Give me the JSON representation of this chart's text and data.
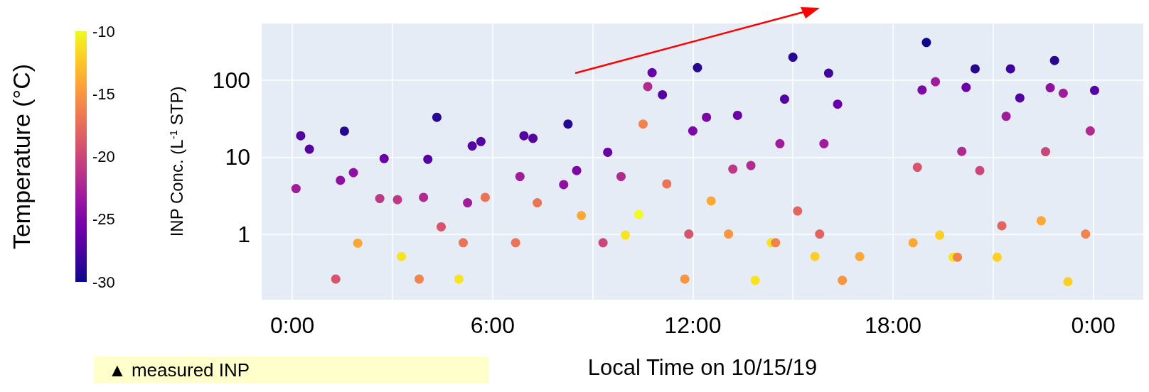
{
  "chart_data": {
    "type": "scatter",
    "xlabel": "Local Time on 10/15/19",
    "ylabel": "INP Conc. (L$^{-1}$ STP)",
    "clabel": "Temperature (°C)",
    "annotations": [
      "▲ measured INP"
    ],
    "log": "y",
    "grid": true,
    "marker": "circle",
    "xlim": [
      -0.92,
      25.5
    ],
    "xticks": [
      {
        "value": 0,
        "label": "0:00"
      },
      {
        "value": 3,
        "label": null
      },
      {
        "value": 6,
        "label": "6:00"
      },
      {
        "value": 9,
        "label": null
      },
      {
        "value": 12,
        "label": "12:00"
      },
      {
        "value": 15,
        "label": null
      },
      {
        "value": 18,
        "label": "18:00"
      },
      {
        "value": 21,
        "label": null
      },
      {
        "value": 24,
        "label": "0:00"
      }
    ],
    "ylim": [
      0.14,
      550
    ],
    "yticks": [
      1,
      10,
      100
    ],
    "clim": [
      -30,
      -10
    ],
    "cticks": [
      -10,
      -15,
      -20,
      -25,
      -30
    ],
    "x": [
      0.11,
      0.25,
      0.51,
      1.3,
      1.44,
      1.56,
      1.83,
      1.96,
      2.62,
      2.75,
      3.15,
      3.27,
      3.8,
      3.93,
      4.06,
      4.33,
      4.46,
      4.99,
      5.12,
      5.25,
      5.39,
      5.65,
      5.78,
      6.69,
      6.82,
      6.94,
      7.21,
      7.34,
      8.13,
      8.26,
      8.52,
      8.66,
      9.31,
      9.45,
      9.85,
      9.98,
      10.38,
      10.51,
      10.65,
      10.78,
      11.09,
      11.22,
      11.76,
      11.88,
      12.0,
      12.14,
      12.41,
      12.55,
      13.07,
      13.2,
      13.34,
      13.74,
      13.87,
      14.35,
      14.48,
      14.61,
      14.75,
      15.0,
      15.14,
      15.66,
      15.8,
      15.93,
      16.07,
      16.34,
      16.48,
      17.0,
      18.6,
      18.73,
      18.87,
      19.0,
      19.27,
      19.4,
      19.8,
      19.93,
      20.06,
      20.19,
      20.46,
      20.6,
      21.12,
      21.26,
      21.39,
      21.52,
      21.8,
      22.44,
      22.57,
      22.71,
      22.84,
      23.1,
      23.24,
      23.77,
      23.91,
      24.04
    ],
    "values": [
      3.9,
      19,
      12.7,
      0.26,
      5.0,
      21.8,
      6.3,
      0.76,
      2.9,
      9.6,
      2.8,
      0.51,
      0.26,
      3.0,
      9.4,
      33,
      1.24,
      0.26,
      0.77,
      2.55,
      14,
      16,
      3.0,
      0.77,
      5.6,
      19,
      17.6,
      2.55,
      4.4,
      27,
      6.7,
      1.74,
      0.77,
      11.6,
      5.6,
      0.97,
      1.8,
      27,
      83,
      126,
      65,
      4.5,
      0.26,
      1.0,
      22,
      146,
      33,
      2.7,
      1.0,
      7.0,
      35,
      7.8,
      0.25,
      0.77,
      0.77,
      15,
      57,
      200,
      2.0,
      0.51,
      1.0,
      15,
      124,
      49,
      0.25,
      0.51,
      0.77,
      7.4,
      75,
      311,
      96,
      0.97,
      0.5,
      0.5,
      11.9,
      81,
      141,
      6.7,
      0.5,
      1.28,
      34,
      141,
      59,
      1.49,
      11.8,
      80,
      181,
      68,
      0.24,
      1.0,
      22,
      74
    ],
    "cvalues": [
      -23,
      -27,
      -27,
      -19,
      -24,
      -29,
      -24,
      -14,
      -21,
      -26,
      -21,
      -11,
      -16,
      -22,
      -27,
      -29,
      -19,
      -11,
      -17,
      -23,
      -27,
      -27,
      -17,
      -17,
      -23,
      -27,
      -27,
      -17,
      -24,
      -29,
      -25,
      -14,
      -20,
      -26,
      -22,
      -11,
      -10,
      -16,
      -22,
      -26,
      -27,
      -17,
      -15,
      -19,
      -25,
      -29,
      -25,
      -14,
      -15,
      -21,
      -26,
      -22,
      -11,
      -11,
      -16,
      -23,
      -27,
      -29,
      -18,
      -12,
      -18,
      -23,
      -28,
      -26,
      -15,
      -14,
      -14,
      -19,
      -25,
      -30,
      -23,
      -12,
      -11,
      -16,
      -22,
      -26,
      -29,
      -20,
      -12,
      -18,
      -23,
      -28,
      -27,
      -14,
      -20,
      -24,
      -29,
      -23,
      -12,
      -16,
      -22,
      -27
    ]
  }
}
